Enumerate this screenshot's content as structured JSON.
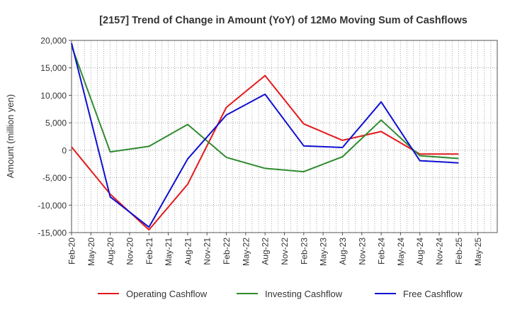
{
  "chart_data": {
    "type": "line",
    "title": "[2157]  Trend of Change in Amount (YoY) of 12Mo Moving Sum of Cashflows",
    "xlabel": "",
    "ylabel": "Amount (million yen)",
    "ylim": [
      -15000,
      20000
    ],
    "y_ticks": [
      -15000,
      -10000,
      -5000,
      0,
      5000,
      10000,
      15000,
      20000
    ],
    "y_tick_labels": [
      "-15,000",
      "-10,000",
      "-5,000",
      "0",
      "5,000",
      "10,000",
      "15,000",
      "20,000"
    ],
    "x_tick_labels": [
      "Feb-20",
      "May-20",
      "Aug-20",
      "Nov-20",
      "Feb-21",
      "May-21",
      "Aug-21",
      "Nov-21",
      "Feb-22",
      "May-22",
      "Aug-22",
      "Nov-22",
      "Feb-23",
      "May-23",
      "Aug-23",
      "Nov-23",
      "Feb-24",
      "May-24",
      "Aug-24",
      "Nov-24",
      "Feb-25",
      "May-25"
    ],
    "grid": true,
    "legend_position": "bottom",
    "series": [
      {
        "name": "Operating Cashflow",
        "color": "#e31a1c",
        "points": [
          {
            "x": "Feb-20",
            "y": 600
          },
          {
            "x": "Aug-20",
            "y": -8000
          },
          {
            "x": "Feb-21",
            "y": -14500
          },
          {
            "x": "Aug-21",
            "y": -6200
          },
          {
            "x": "Feb-22",
            "y": 7800
          },
          {
            "x": "Aug-22",
            "y": 13600
          },
          {
            "x": "Feb-23",
            "y": 4800
          },
          {
            "x": "Aug-23",
            "y": 1800
          },
          {
            "x": "Feb-24",
            "y": 3400
          },
          {
            "x": "Aug-24",
            "y": -700
          },
          {
            "x": "Feb-25",
            "y": -700
          }
        ]
      },
      {
        "name": "Investing Cashflow",
        "color": "#2e8b2e",
        "points": [
          {
            "x": "Feb-20",
            "y": 19000
          },
          {
            "x": "Aug-20",
            "y": -300
          },
          {
            "x": "Feb-21",
            "y": 700
          },
          {
            "x": "Aug-21",
            "y": 4700
          },
          {
            "x": "Feb-22",
            "y": -1300
          },
          {
            "x": "Aug-22",
            "y": -3300
          },
          {
            "x": "Feb-23",
            "y": -3900
          },
          {
            "x": "Aug-23",
            "y": -1200
          },
          {
            "x": "Feb-24",
            "y": 5500
          },
          {
            "x": "Aug-24",
            "y": -1000
          },
          {
            "x": "Feb-25",
            "y": -1500
          }
        ]
      },
      {
        "name": "Free Cashflow",
        "color": "#1010d0",
        "points": [
          {
            "x": "Feb-20",
            "y": 19500
          },
          {
            "x": "Aug-20",
            "y": -8500
          },
          {
            "x": "Feb-21",
            "y": -14000
          },
          {
            "x": "Aug-21",
            "y": -1600
          },
          {
            "x": "Feb-22",
            "y": 6400
          },
          {
            "x": "Aug-22",
            "y": 10200
          },
          {
            "x": "Feb-23",
            "y": 800
          },
          {
            "x": "Aug-23",
            "y": 500
          },
          {
            "x": "Feb-24",
            "y": 8800
          },
          {
            "x": "Aug-24",
            "y": -1900
          },
          {
            "x": "Feb-25",
            "y": -2300
          }
        ]
      }
    ]
  }
}
